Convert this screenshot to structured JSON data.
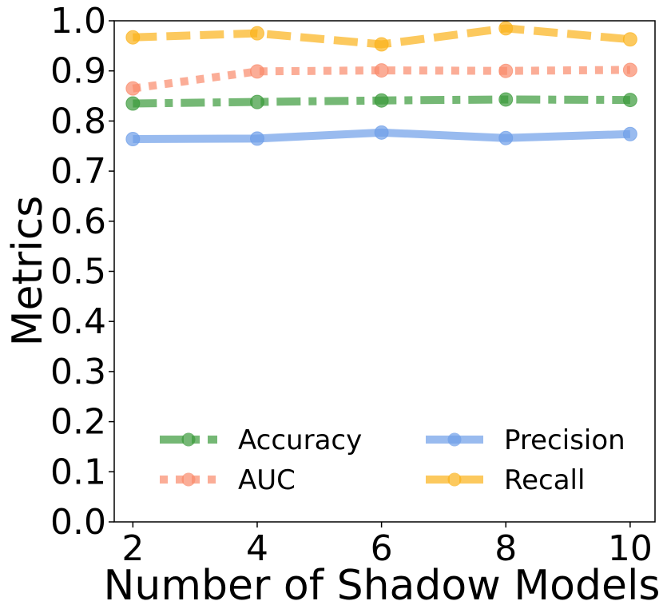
{
  "chart_data": {
    "type": "line",
    "title": "",
    "xlabel": "Number of Shadow Models",
    "ylabel": "Metrics",
    "x": [
      2,
      4,
      6,
      8,
      10
    ],
    "xticks": [
      "2",
      "4",
      "6",
      "8",
      "10"
    ],
    "yticks": [
      "0.0",
      "0.1",
      "0.2",
      "0.3",
      "0.4",
      "0.5",
      "0.6",
      "0.7",
      "0.8",
      "0.9",
      "1.0"
    ],
    "xlim": [
      1.7,
      10.4
    ],
    "ylim": [
      0.0,
      1.0
    ],
    "grid": false,
    "legend_position": "lower center, two columns",
    "series": [
      {
        "name": "Accuracy",
        "values": [
          0.835,
          0.838,
          0.841,
          0.843,
          0.842
        ],
        "color": "#3a9a3a",
        "style": "dashdot"
      },
      {
        "name": "AUC",
        "values": [
          0.865,
          0.899,
          0.901,
          0.9,
          0.902
        ],
        "color": "#f98a6b",
        "style": "dotted"
      },
      {
        "name": "Precision",
        "values": [
          0.764,
          0.765,
          0.777,
          0.766,
          0.774
        ],
        "color": "#6e9ee8",
        "style": "solid"
      },
      {
        "name": "Recall",
        "values": [
          0.967,
          0.975,
          0.953,
          0.985,
          0.963
        ],
        "color": "#fbb21a",
        "style": "dashed"
      }
    ]
  }
}
